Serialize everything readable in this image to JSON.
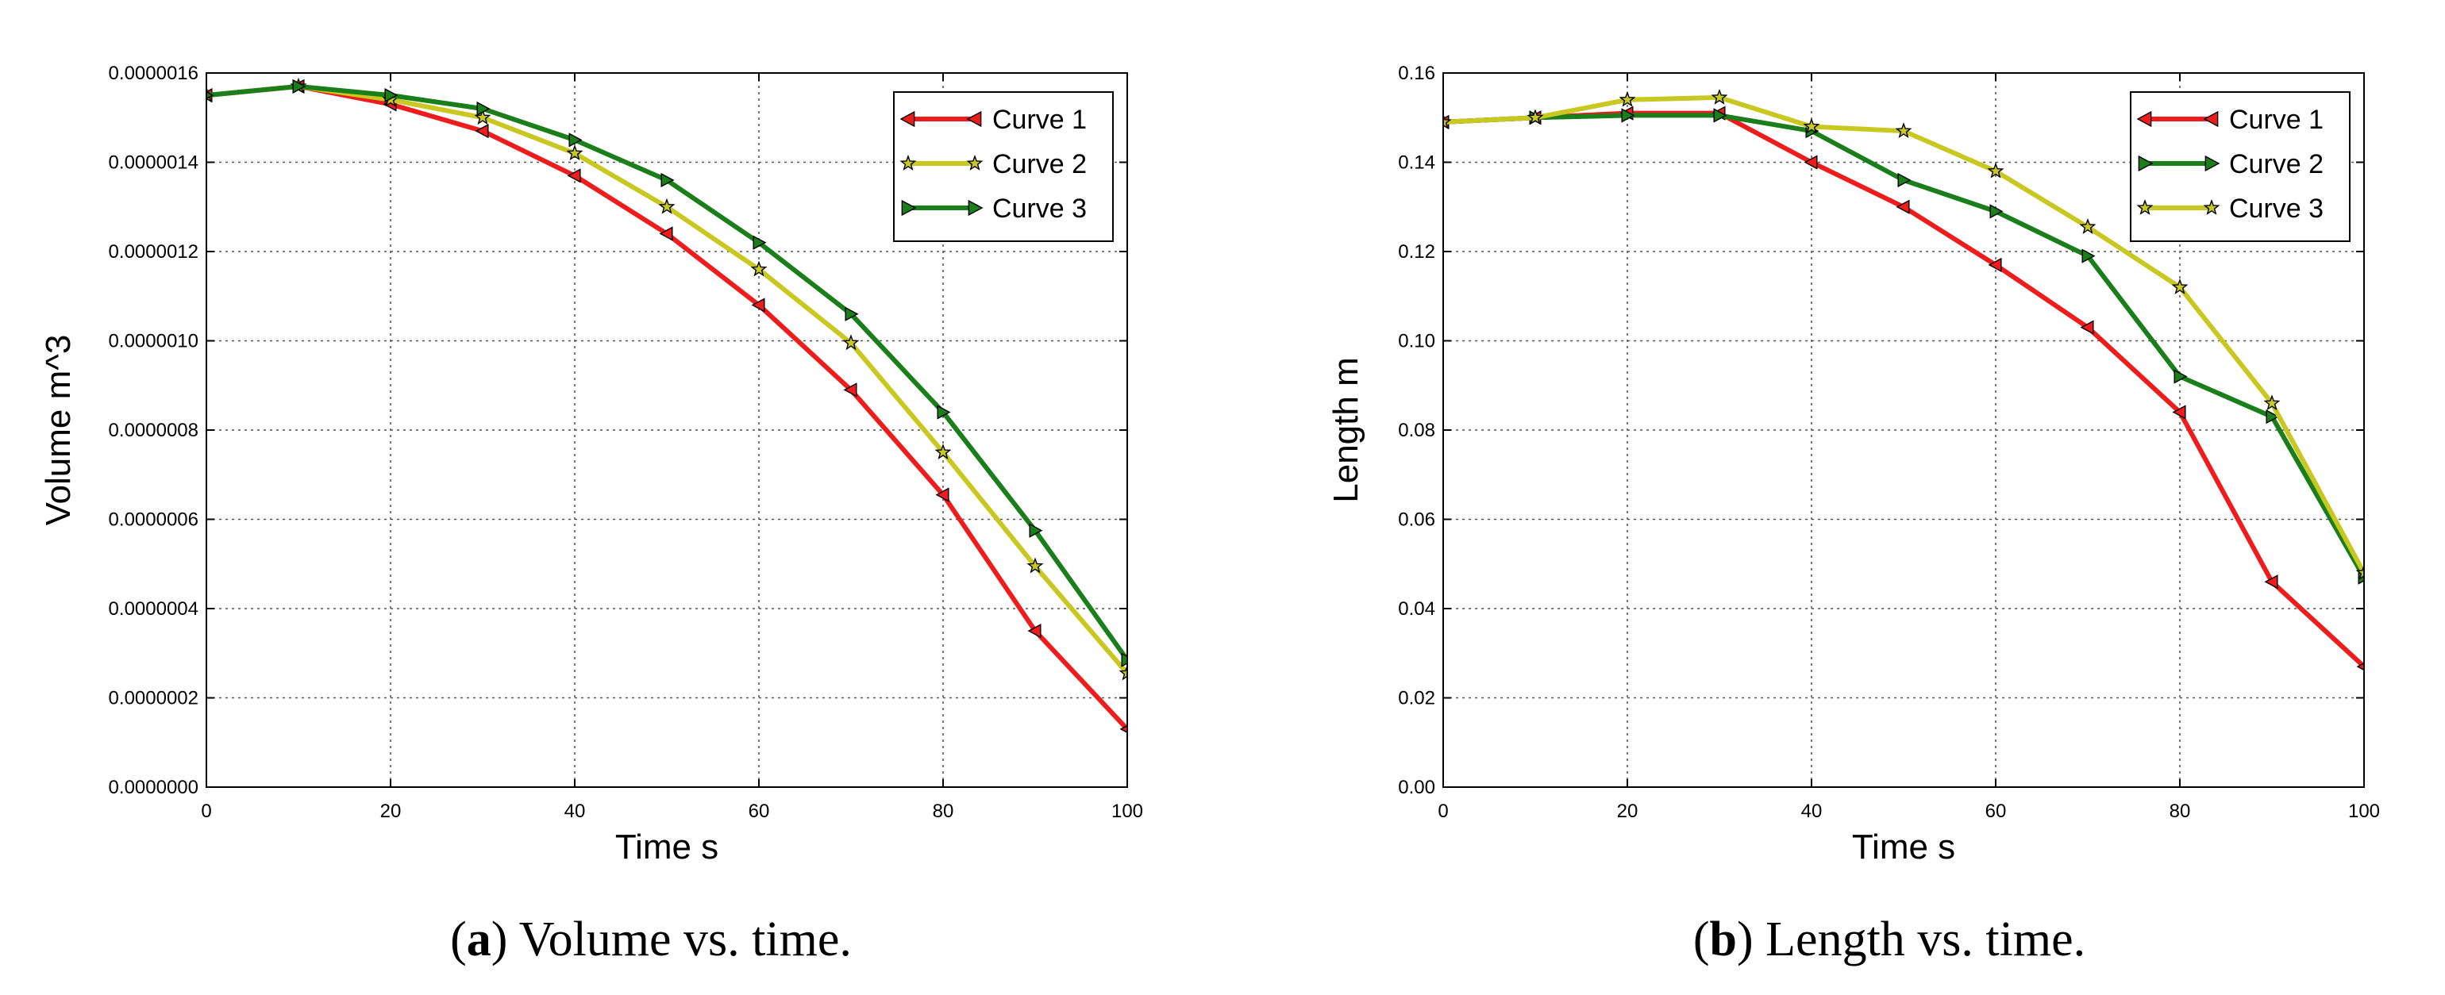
{
  "chart_data": [
    {
      "type": "line",
      "title": "",
      "xlabel": "Time s",
      "ylabel": "Volume m^3",
      "xlim": [
        0,
        100
      ],
      "ylim": [
        0,
        1.6e-06
      ],
      "xticks": [
        "0",
        "20",
        "40",
        "60",
        "80",
        "100"
      ],
      "xtick_values": [
        0,
        20,
        40,
        60,
        80,
        100
      ],
      "yticks": [
        "0.0000000",
        "0.0000002",
        "0.0000004",
        "0.0000006",
        "0.0000008",
        "0.0000010",
        "0.0000012",
        "0.0000014",
        "0.0000016"
      ],
      "ytick_values": [
        0,
        2e-07,
        4e-07,
        6e-07,
        8e-07,
        1e-06,
        1.2e-06,
        1.4e-06,
        1.6e-06
      ],
      "grid": true,
      "legend_position": "top-right",
      "x": [
        0,
        10,
        20,
        30,
        40,
        50,
        60,
        70,
        80,
        90,
        100
      ],
      "series": [
        {
          "name": "Curve 1",
          "color": "#ee1c1c",
          "marker": "triangle-left",
          "values": [
            1.55e-06,
            1.57e-06,
            1.53e-06,
            1.47e-06,
            1.37e-06,
            1.24e-06,
            1.08e-06,
            8.9e-07,
            6.55e-07,
            3.5e-07,
            1.3e-07
          ]
        },
        {
          "name": "Curve 2",
          "color": "#c8c820",
          "marker": "star",
          "values": [
            1.55e-06,
            1.57e-06,
            1.54e-06,
            1.5e-06,
            1.42e-06,
            1.3e-06,
            1.16e-06,
            9.95e-07,
            7.5e-07,
            4.95e-07,
            2.55e-07
          ]
        },
        {
          "name": "Curve 3",
          "color": "#1a7e1a",
          "marker": "triangle-right",
          "values": [
            1.55e-06,
            1.57e-06,
            1.55e-06,
            1.52e-06,
            1.45e-06,
            1.36e-06,
            1.22e-06,
            1.06e-06,
            8.4e-07,
            5.75e-07,
            2.85e-07
          ]
        }
      ],
      "caption_label": "a",
      "caption_text": " Volume vs. time."
    },
    {
      "type": "line",
      "title": "",
      "xlabel": "Time s",
      "ylabel": "Length m",
      "xlim": [
        0,
        100
      ],
      "ylim": [
        0,
        0.16
      ],
      "xticks": [
        "0",
        "20",
        "40",
        "60",
        "80",
        "100"
      ],
      "xtick_values": [
        0,
        20,
        40,
        60,
        80,
        100
      ],
      "yticks": [
        "0.00",
        "0.02",
        "0.04",
        "0.06",
        "0.08",
        "0.10",
        "0.12",
        "0.14",
        "0.16"
      ],
      "ytick_values": [
        0,
        0.02,
        0.04,
        0.06,
        0.08,
        0.1,
        0.12,
        0.14,
        0.16
      ],
      "grid": true,
      "legend_position": "top-right",
      "x": [
        0,
        10,
        20,
        30,
        40,
        50,
        60,
        70,
        80,
        90,
        100
      ],
      "series": [
        {
          "name": "Curve 1",
          "color": "#ee1c1c",
          "marker": "triangle-left",
          "values": [
            0.149,
            0.15,
            0.151,
            0.151,
            0.14,
            0.13,
            0.117,
            0.103,
            0.084,
            0.046,
            0.027
          ]
        },
        {
          "name": "Curve 2",
          "color": "#1a7e1a",
          "marker": "triangle-right",
          "values": [
            0.149,
            0.15,
            0.1505,
            0.1505,
            0.147,
            0.136,
            0.129,
            0.119,
            0.092,
            0.083,
            0.047
          ]
        },
        {
          "name": "Curve 3",
          "color": "#c8c820",
          "marker": "star",
          "values": [
            0.149,
            0.15,
            0.154,
            0.1545,
            0.148,
            0.147,
            0.138,
            0.1255,
            0.112,
            0.086,
            0.048
          ]
        }
      ],
      "caption_label": "b",
      "caption_text": " Length vs. time."
    }
  ]
}
